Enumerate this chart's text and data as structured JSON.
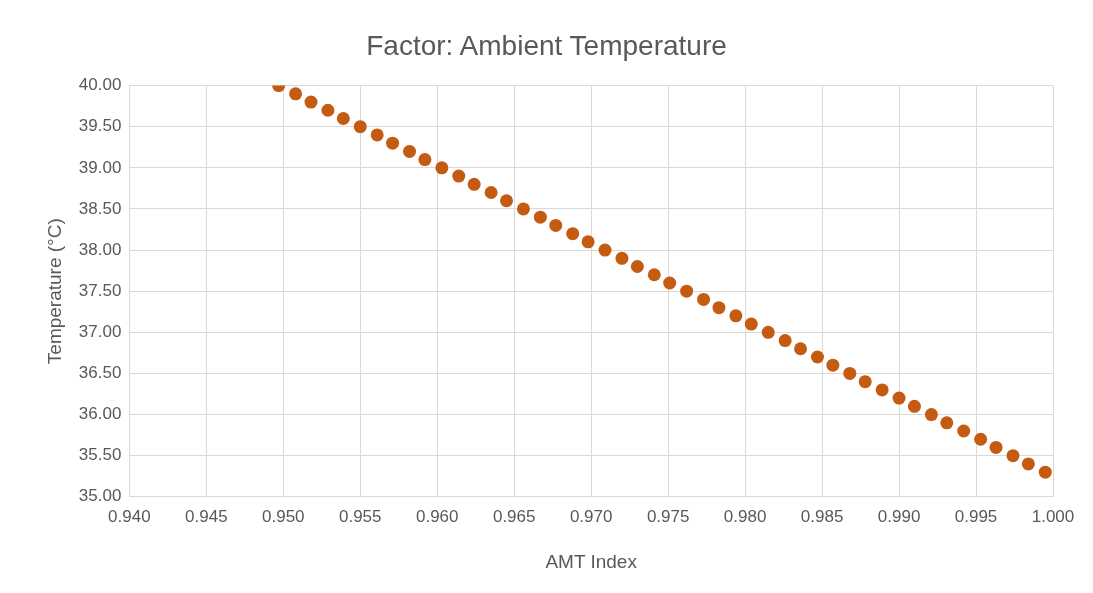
{
  "chart_data": {
    "type": "scatter",
    "title": "Factor: Ambient Temperature",
    "xlabel": "AMT Index",
    "ylabel": "Temperature (°C)",
    "series": [
      {
        "color": "#c55a11",
        "x": [
          0.9497,
          0.9508,
          0.9518,
          0.9529,
          0.9539,
          0.955,
          0.9561,
          0.9571,
          0.9582,
          0.9592,
          0.9603,
          0.9614,
          0.9624,
          0.9635,
          0.9645,
          0.9656,
          0.9667,
          0.9677,
          0.9688,
          0.9698,
          0.9709,
          0.972,
          0.973,
          0.9741,
          0.9751,
          0.9762,
          0.9773,
          0.9783,
          0.9794,
          0.9804,
          0.9815,
          0.9826,
          0.9836,
          0.9847,
          0.9857,
          0.9868,
          0.9878,
          0.9889,
          0.99,
          0.991,
          0.9921,
          0.9931,
          0.9942,
          0.9953,
          0.9963,
          0.9974,
          0.9984,
          0.9995
        ],
        "values": [
          40.0,
          39.9,
          39.8,
          39.7,
          39.6,
          39.5,
          39.4,
          39.3,
          39.2,
          39.1,
          39.0,
          38.9,
          38.8,
          38.7,
          38.6,
          38.5,
          38.4,
          38.3,
          38.2,
          38.1,
          38.0,
          37.9,
          37.8,
          37.7,
          37.6,
          37.5,
          37.4,
          37.3,
          37.2,
          37.1,
          37.0,
          36.9,
          36.8,
          36.7,
          36.6,
          36.5,
          36.4,
          36.3,
          36.2,
          36.1,
          36.0,
          35.9,
          35.8,
          35.7,
          35.6,
          35.5,
          35.4,
          35.3
        ]
      }
    ],
    "xlim": [
      0.94,
      1.0
    ],
    "xticks": [
      {
        "value": 0.94,
        "label": "0.940"
      },
      {
        "value": 0.945,
        "label": "0.945"
      },
      {
        "value": 0.95,
        "label": "0.950"
      },
      {
        "value": 0.955,
        "label": "0.955"
      },
      {
        "value": 0.96,
        "label": "0.960"
      },
      {
        "value": 0.965,
        "label": "0.965"
      },
      {
        "value": 0.97,
        "label": "0.970"
      },
      {
        "value": 0.975,
        "label": "0.975"
      },
      {
        "value": 0.98,
        "label": "0.980"
      },
      {
        "value": 0.985,
        "label": "0.985"
      },
      {
        "value": 0.99,
        "label": "0.990"
      },
      {
        "value": 0.995,
        "label": "0.995"
      },
      {
        "value": 1.0,
        "label": "1.000"
      }
    ],
    "ylim": [
      35,
      40
    ],
    "yticks": [
      {
        "value": 35,
        "label": "35.00"
      },
      {
        "value": 35.5,
        "label": "35.50"
      },
      {
        "value": 36,
        "label": "36.00"
      },
      {
        "value": 36.5,
        "label": "36.50"
      },
      {
        "value": 37,
        "label": "37.00"
      },
      {
        "value": 37.5,
        "label": "37.50"
      },
      {
        "value": 38,
        "label": "38.00"
      },
      {
        "value": 38.5,
        "label": "38.50"
      },
      {
        "value": 39,
        "label": "39.00"
      },
      {
        "value": 39.5,
        "label": "39.50"
      },
      {
        "value": 40,
        "label": "40.00"
      }
    ],
    "grid": true,
    "marker": "circle",
    "legend": false
  }
}
